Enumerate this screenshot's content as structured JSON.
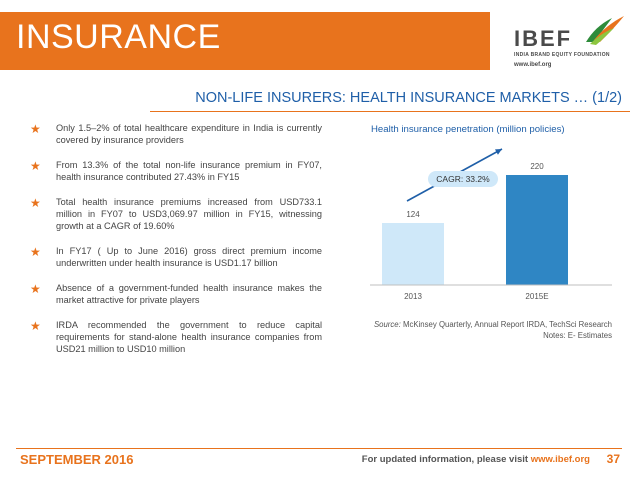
{
  "header": {
    "title": "INSURANCE",
    "subtitle": "NON-LIFE INSURERS: HEALTH INSURANCE MARKETS … (1/2)"
  },
  "logo": {
    "name": "IBEF",
    "tagline": "INDIA BRAND EQUITY FOUNDATION",
    "url": "www.ibef.org",
    "icon": "bird-logo-icon"
  },
  "bullets": [
    "Only 1.5–2% of total healthcare expenditure in India is currently covered by insurance providers",
    "From 13.3% of the total non-life insurance premium in FY07, health insurance contributed 27.43% in FY15",
    "Total health insurance premiums increased from USD733.1 million in FY07 to USD3,069.97 million in FY15, witnessing growth at a CAGR of 19.60%",
    "In FY17 ( Up to June 2016) gross direct premium income underwritten under health insurance is USD1.17 billion",
    "Absence of a government-funded health insurance makes the market attractive for private players",
    "IRDA recommended the government to reduce capital requirements for stand-alone health insurance companies from USD21 million to USD10 million"
  ],
  "bullet_icon": "star-bullet-icon",
  "colors": {
    "accent": "#e8731d",
    "heading_blue": "#1f5fa8",
    "bar_light": "#cfe8f9",
    "bar_dark": "#2f86c4"
  },
  "chart_data": {
    "type": "bar",
    "title": "Health insurance penetration (million policies)",
    "categories": [
      "2013",
      "2015E"
    ],
    "values": [
      124,
      220
    ],
    "ylim": [
      0,
      240
    ],
    "grid": false,
    "annotation": "CAGR: 33.2%"
  },
  "source": {
    "label": "Source:",
    "text": "McKinsey Quarterly, Annual Report IRDA, TechSci Research",
    "notes": "Notes: E- Estimates"
  },
  "footer": {
    "date": "SEPTEMBER 2016",
    "note": "For updated information, please visit",
    "link": "www.ibef.org",
    "page": "37"
  }
}
